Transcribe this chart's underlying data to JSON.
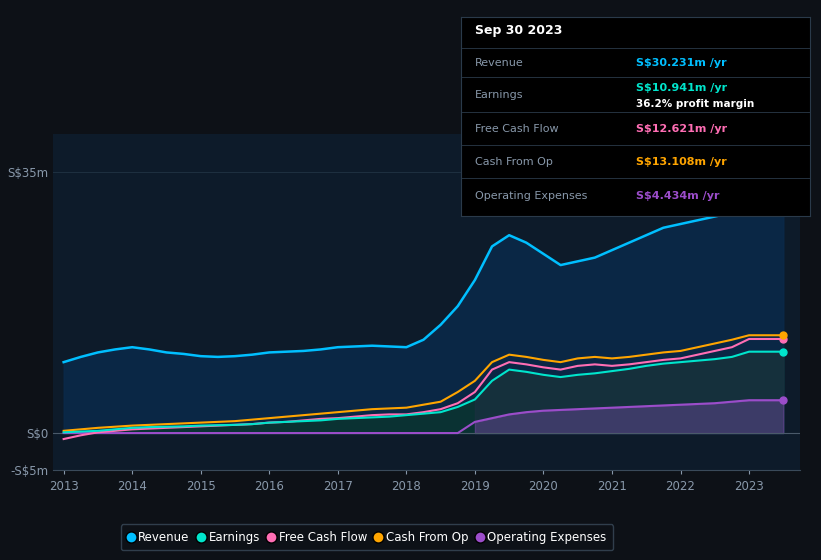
{
  "bg_color": "#0d1117",
  "plot_bg_color": "#0d1b2a",
  "grid_color": "#1e3040",
  "years": [
    2013,
    2013.25,
    2013.5,
    2013.75,
    2014,
    2014.25,
    2014.5,
    2014.75,
    2015,
    2015.25,
    2015.5,
    2015.75,
    2016,
    2016.25,
    2016.5,
    2016.75,
    2017,
    2017.25,
    2017.5,
    2017.75,
    2018,
    2018.25,
    2018.5,
    2018.75,
    2019,
    2019.25,
    2019.5,
    2019.75,
    2020,
    2020.25,
    2020.5,
    2020.75,
    2021,
    2021.25,
    2021.5,
    2021.75,
    2022,
    2022.25,
    2022.5,
    2022.75,
    2023,
    2023.5
  ],
  "revenue": [
    9.5,
    10.2,
    10.8,
    11.2,
    11.5,
    11.2,
    10.8,
    10.6,
    10.3,
    10.2,
    10.3,
    10.5,
    10.8,
    10.9,
    11.0,
    11.2,
    11.5,
    11.6,
    11.7,
    11.6,
    11.5,
    12.5,
    14.5,
    17.0,
    20.5,
    25.0,
    26.5,
    25.5,
    24.0,
    22.5,
    23.0,
    23.5,
    24.5,
    25.5,
    26.5,
    27.5,
    28.0,
    28.5,
    29.0,
    29.5,
    30.2,
    30.2
  ],
  "earnings": [
    0.1,
    0.2,
    0.3,
    0.5,
    0.7,
    0.8,
    0.85,
    0.9,
    1.0,
    1.05,
    1.1,
    1.2,
    1.4,
    1.5,
    1.6,
    1.7,
    1.9,
    2.0,
    2.1,
    2.2,
    2.4,
    2.6,
    2.8,
    3.5,
    4.5,
    7.0,
    8.5,
    8.2,
    7.8,
    7.5,
    7.8,
    8.0,
    8.3,
    8.6,
    9.0,
    9.3,
    9.5,
    9.7,
    9.9,
    10.2,
    10.9,
    10.9
  ],
  "free_cash_flow": [
    -0.8,
    -0.3,
    0.1,
    0.3,
    0.5,
    0.6,
    0.7,
    0.8,
    0.9,
    1.0,
    1.1,
    1.2,
    1.4,
    1.5,
    1.7,
    1.9,
    2.0,
    2.2,
    2.4,
    2.5,
    2.5,
    2.8,
    3.2,
    4.0,
    5.5,
    8.5,
    9.5,
    9.2,
    8.8,
    8.5,
    9.0,
    9.2,
    9.0,
    9.2,
    9.5,
    9.8,
    10.0,
    10.5,
    11.0,
    11.5,
    12.6,
    12.6
  ],
  "cash_from_op": [
    0.3,
    0.5,
    0.7,
    0.85,
    1.0,
    1.1,
    1.2,
    1.3,
    1.4,
    1.5,
    1.6,
    1.8,
    2.0,
    2.2,
    2.4,
    2.6,
    2.8,
    3.0,
    3.2,
    3.3,
    3.4,
    3.8,
    4.2,
    5.5,
    7.0,
    9.5,
    10.5,
    10.2,
    9.8,
    9.5,
    10.0,
    10.2,
    10.0,
    10.2,
    10.5,
    10.8,
    11.0,
    11.5,
    12.0,
    12.5,
    13.1,
    13.1
  ],
  "operating_expenses": [
    0.0,
    0.0,
    0.0,
    0.0,
    0.0,
    0.0,
    0.0,
    0.0,
    0.0,
    0.0,
    0.0,
    0.0,
    0.0,
    0.0,
    0.0,
    0.0,
    0.0,
    0.0,
    0.0,
    0.0,
    0.0,
    0.0,
    0.0,
    0.0,
    1.5,
    2.0,
    2.5,
    2.8,
    3.0,
    3.1,
    3.2,
    3.3,
    3.4,
    3.5,
    3.6,
    3.7,
    3.8,
    3.9,
    4.0,
    4.2,
    4.4,
    4.4
  ],
  "revenue_color": "#00bfff",
  "earnings_color": "#00e5cc",
  "free_cash_flow_color": "#ff6eb4",
  "cash_from_op_color": "#ffa500",
  "operating_expenses_color": "#9b4dca",
  "ylim_min": -5,
  "ylim_max": 40,
  "xlim_min": 2012.85,
  "xlim_max": 2023.75,
  "ytick_positions": [
    -5,
    0,
    35
  ],
  "ytick_labels": [
    "-S$5m",
    "S$0",
    "S$35m"
  ],
  "xtick_positions": [
    2013,
    2014,
    2015,
    2016,
    2017,
    2018,
    2019,
    2020,
    2021,
    2022,
    2023
  ],
  "tooltip_date": "Sep 30 2023",
  "tooltip_rows": [
    {
      "label": "Revenue",
      "value": "S$30.231m /yr",
      "color": "#00bfff",
      "extra": null
    },
    {
      "label": "Earnings",
      "value": "S$10.941m /yr",
      "color": "#00e5cc",
      "extra": "36.2% profit margin"
    },
    {
      "label": "Free Cash Flow",
      "value": "S$12.621m /yr",
      "color": "#ff6eb4",
      "extra": null
    },
    {
      "label": "Cash From Op",
      "value": "S$13.108m /yr",
      "color": "#ffa500",
      "extra": null
    },
    {
      "label": "Operating Expenses",
      "value": "S$4.434m /yr",
      "color": "#9b4dca",
      "extra": null
    }
  ],
  "legend_items": [
    "Revenue",
    "Earnings",
    "Free Cash Flow",
    "Cash From Op",
    "Operating Expenses"
  ],
  "legend_colors": [
    "#00bfff",
    "#00e5cc",
    "#ff6eb4",
    "#ffa500",
    "#9b4dca"
  ],
  "shade_2019_color": "#2a1a4a",
  "revenue_fill_color": "#0a2a4a",
  "earnings_fill_color": "#0a3530"
}
